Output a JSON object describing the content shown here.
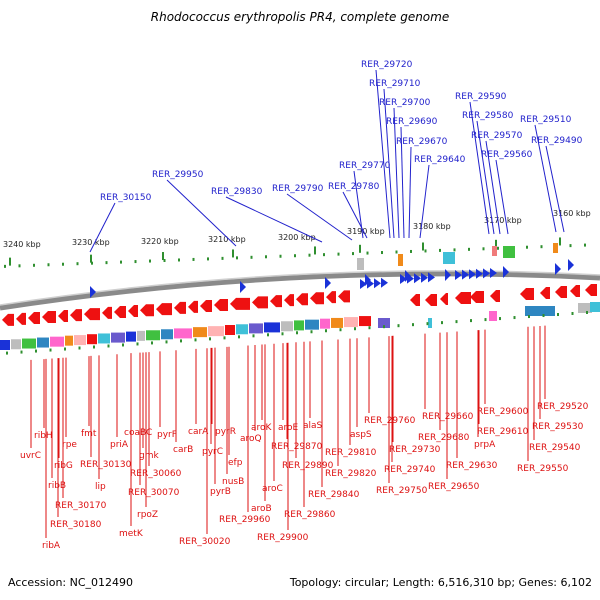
{
  "title": "Rhodococcus erythropolis PR4, complete genome",
  "footer": {
    "accession": "Accession: NC_012490",
    "info": "Topology: circular; Length: 6,516,310 bp; Genes: 6,102"
  },
  "scale_labels": [
    "3240 kbp",
    "3230 kbp",
    "3220 kbp",
    "3210 kbp",
    "3200 kbp",
    "3190 kbp",
    "3180 kbp",
    "3170 kbp",
    "3160 kbp"
  ],
  "top_labels": [
    "RER_29720",
    "RER_29710",
    "RER_29700",
    "RER_29690",
    "RER_29670",
    "RER_29640",
    "RER_29590",
    "RER_29580",
    "RER_29570",
    "RER_29560",
    "RER_29510",
    "RER_29490",
    "RER_29950",
    "RER_29830",
    "RER_29790",
    "RER_29770",
    "RER_29780",
    "RER_30150"
  ],
  "bottom_labels": [
    "uvrC",
    "ribH",
    "rpe",
    "fmt",
    "ribG",
    "ribB",
    "lip",
    "RER_30130",
    "RER_30170",
    "RER_30180",
    "ribA",
    "priA",
    "coaBC",
    "gmk",
    "RER_30060",
    "RER_30070",
    "rpoZ",
    "metK",
    "pyrF",
    "carB",
    "carA",
    "pyrR",
    "pyrC",
    "efp",
    "nusB",
    "pyrB",
    "RER_30020",
    "aroQ",
    "aroK",
    "aroE",
    "alaS",
    "aroB",
    "RER_29960",
    "aroC",
    "RER_29870",
    "RER_29890",
    "RER_29860",
    "RER_29900",
    "RER_29840",
    "RER_29820",
    "RER_29810",
    "aspS",
    "RER_29760",
    "RER_29730",
    "RER_29740",
    "RER_29750",
    "RER_29660",
    "RER_29680",
    "RER_29650",
    "RER_29630",
    "RER_29610",
    "RER_29600",
    "prpA",
    "RER_29520",
    "RER_29530",
    "RER_29540",
    "RER_29550"
  ]
}
